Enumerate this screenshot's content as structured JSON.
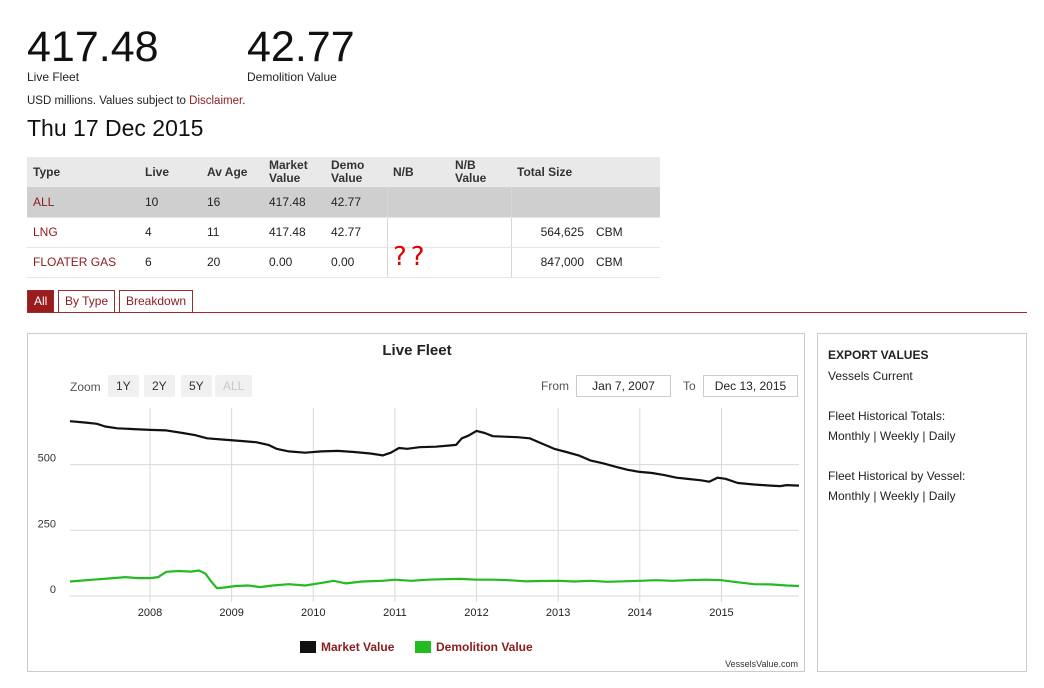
{
  "summary": {
    "live_fleet_value": "417.48",
    "live_fleet_label": "Live Fleet",
    "demolition_value": "42.77",
    "demolition_label": "Demolition Value",
    "units_note": "USD millions. Values subject to ",
    "disclaimer_link": "Disclaimer",
    "units_note_end": ".",
    "date": "Thu 17 Dec 2015"
  },
  "table": {
    "headers": [
      "Type",
      "Live",
      "Av Age",
      "Market\nValue",
      "Demo\nValue",
      "N/B",
      "N/B\nValue",
      "Total Size",
      ""
    ],
    "rows": [
      {
        "type": "ALL",
        "live": "10",
        "av_age": "16",
        "market_value": "417.48",
        "demo_value": "42.77",
        "nb": "",
        "nb_value": "",
        "total_size": "",
        "unit": "",
        "selected": true
      },
      {
        "type": "LNG",
        "live": "4",
        "av_age": "11",
        "market_value": "417.48",
        "demo_value": "42.77",
        "nb": "",
        "nb_value": "",
        "total_size": "564,625",
        "unit": "CBM",
        "selected": false
      },
      {
        "type": "FLOATER GAS",
        "live": "6",
        "av_age": "20",
        "market_value": "0.00",
        "demo_value": "0.00",
        "nb": "",
        "nb_value": "",
        "total_size": "847,000",
        "unit": "CBM",
        "selected": false
      }
    ],
    "annotation": "??",
    "annotation_color": "#e00000"
  },
  "tabs": [
    "All",
    "By Type",
    "Breakdown"
  ],
  "chart_controls": {
    "zoom_label": "Zoom",
    "zoom_buttons": [
      "1Y",
      "2Y",
      "5Y",
      "ALL"
    ],
    "from_label": "From",
    "from_value": "Jan 7, 2007",
    "to_label": "To",
    "to_value": "Dec 13, 2015"
  },
  "chart_data": {
    "type": "line",
    "title": "Live Fleet",
    "xlabel": "",
    "ylabel": "",
    "xlim": [
      2007.02,
      2015.95
    ],
    "ylim": [
      0,
      700
    ],
    "x_ticks": [
      "2008",
      "2009",
      "2010",
      "2011",
      "2012",
      "2013",
      "2014",
      "2015"
    ],
    "y_ticks": [
      "0",
      "250",
      "500"
    ],
    "legend_position": "bottom-center",
    "credit": "VesselsValue.com",
    "series": [
      {
        "name": "Market Value",
        "color": "#111111",
        "points": [
          [
            2007.02,
            665
          ],
          [
            2007.2,
            660
          ],
          [
            2007.35,
            655
          ],
          [
            2007.45,
            645
          ],
          [
            2007.6,
            638
          ],
          [
            2007.8,
            635
          ],
          [
            2008.0,
            632
          ],
          [
            2008.2,
            630
          ],
          [
            2008.4,
            620
          ],
          [
            2008.55,
            612
          ],
          [
            2008.7,
            600
          ],
          [
            2008.9,
            595
          ],
          [
            2009.1,
            590
          ],
          [
            2009.3,
            585
          ],
          [
            2009.45,
            575
          ],
          [
            2009.55,
            560
          ],
          [
            2009.7,
            550
          ],
          [
            2009.9,
            545
          ],
          [
            2010.1,
            550
          ],
          [
            2010.3,
            552
          ],
          [
            2010.5,
            548
          ],
          [
            2010.7,
            542
          ],
          [
            2010.85,
            535
          ],
          [
            2010.95,
            545
          ],
          [
            2011.05,
            563
          ],
          [
            2011.15,
            560
          ],
          [
            2011.3,
            566
          ],
          [
            2011.5,
            568
          ],
          [
            2011.65,
            572
          ],
          [
            2011.75,
            575
          ],
          [
            2011.82,
            600
          ],
          [
            2011.9,
            610
          ],
          [
            2012.0,
            628
          ],
          [
            2012.1,
            620
          ],
          [
            2012.2,
            608
          ],
          [
            2012.35,
            606
          ],
          [
            2012.5,
            604
          ],
          [
            2012.65,
            600
          ],
          [
            2012.8,
            580
          ],
          [
            2012.95,
            560
          ],
          [
            2013.1,
            548
          ],
          [
            2013.25,
            535
          ],
          [
            2013.4,
            515
          ],
          [
            2013.55,
            505
          ],
          [
            2013.7,
            492
          ],
          [
            2013.85,
            480
          ],
          [
            2014.0,
            472
          ],
          [
            2014.15,
            468
          ],
          [
            2014.3,
            460
          ],
          [
            2014.45,
            450
          ],
          [
            2014.6,
            445
          ],
          [
            2014.75,
            440
          ],
          [
            2014.85,
            435
          ],
          [
            2014.95,
            450
          ],
          [
            2015.05,
            446
          ],
          [
            2015.2,
            430
          ],
          [
            2015.4,
            424
          ],
          [
            2015.6,
            420
          ],
          [
            2015.72,
            418
          ],
          [
            2015.8,
            422
          ],
          [
            2015.95,
            420
          ]
        ]
      },
      {
        "name": "Demolition Value",
        "color": "#22bb22",
        "points": [
          [
            2007.02,
            55
          ],
          [
            2007.3,
            62
          ],
          [
            2007.55,
            68
          ],
          [
            2007.7,
            72
          ],
          [
            2007.85,
            68
          ],
          [
            2008.0,
            68
          ],
          [
            2008.1,
            72
          ],
          [
            2008.2,
            92
          ],
          [
            2008.35,
            95
          ],
          [
            2008.5,
            93
          ],
          [
            2008.6,
            97
          ],
          [
            2008.68,
            85
          ],
          [
            2008.75,
            55
          ],
          [
            2008.82,
            30
          ],
          [
            2008.9,
            32
          ],
          [
            2009.05,
            38
          ],
          [
            2009.2,
            40
          ],
          [
            2009.35,
            34
          ],
          [
            2009.5,
            40
          ],
          [
            2009.7,
            45
          ],
          [
            2009.9,
            40
          ],
          [
            2010.1,
            50
          ],
          [
            2010.25,
            58
          ],
          [
            2010.4,
            48
          ],
          [
            2010.6,
            55
          ],
          [
            2010.85,
            58
          ],
          [
            2011.0,
            62
          ],
          [
            2011.2,
            58
          ],
          [
            2011.4,
            62
          ],
          [
            2011.6,
            64
          ],
          [
            2011.8,
            65
          ],
          [
            2012.0,
            62
          ],
          [
            2012.2,
            62
          ],
          [
            2012.4,
            60
          ],
          [
            2012.6,
            56
          ],
          [
            2012.8,
            57
          ],
          [
            2013.0,
            58
          ],
          [
            2013.2,
            55
          ],
          [
            2013.4,
            58
          ],
          [
            2013.6,
            54
          ],
          [
            2013.8,
            56
          ],
          [
            2014.0,
            58
          ],
          [
            2014.2,
            60
          ],
          [
            2014.4,
            58
          ],
          [
            2014.6,
            60
          ],
          [
            2014.8,
            62
          ],
          [
            2015.0,
            60
          ],
          [
            2015.2,
            52
          ],
          [
            2015.4,
            45
          ],
          [
            2015.6,
            44
          ],
          [
            2015.8,
            40
          ],
          [
            2015.95,
            38
          ]
        ]
      }
    ]
  },
  "export": {
    "title": "EXPORT VALUES",
    "vessels_current": "Vessels Current",
    "historical_totals_label": "Fleet Historical Totals:",
    "historical_vessel_label": "Fleet Historical by Vessel:",
    "monthly": "Monthly",
    "weekly": "Weekly",
    "daily": "Daily",
    "separator": "|"
  }
}
